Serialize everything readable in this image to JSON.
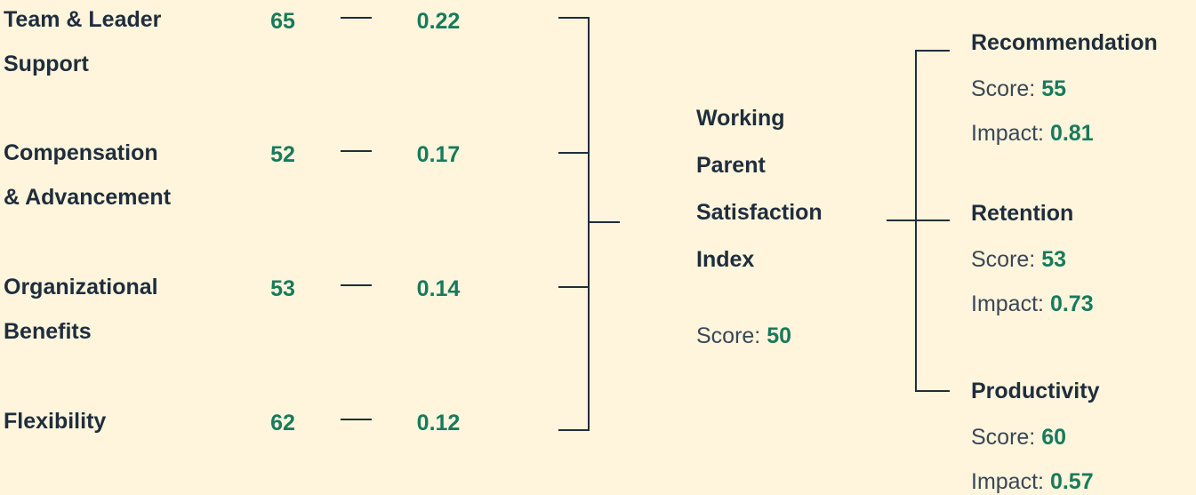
{
  "drivers": [
    {
      "label": [
        "Team & Leader",
        "Support"
      ],
      "score": 65,
      "impact": 0.22
    },
    {
      "label": [
        "Compensation",
        "& Advancement"
      ],
      "score": 52,
      "impact": 0.17
    },
    {
      "label": [
        "Organizational",
        "Benefits"
      ],
      "score": 53,
      "impact": 0.14
    },
    {
      "label": [
        "Flexibility"
      ],
      "score": 62,
      "impact": 0.12
    }
  ],
  "index": {
    "title": [
      "Working",
      "Parent",
      "Satisfaction",
      "Index"
    ],
    "score": 50
  },
  "score_label": "Score:",
  "impact_label": "Impact:",
  "outcomes": [
    {
      "name": "Recommendation",
      "score": 55,
      "impact": 0.81
    },
    {
      "name": "Retention",
      "score": 53,
      "impact": 0.73
    },
    {
      "name": "Productivity",
      "score": 60,
      "impact": 0.57
    }
  ]
}
